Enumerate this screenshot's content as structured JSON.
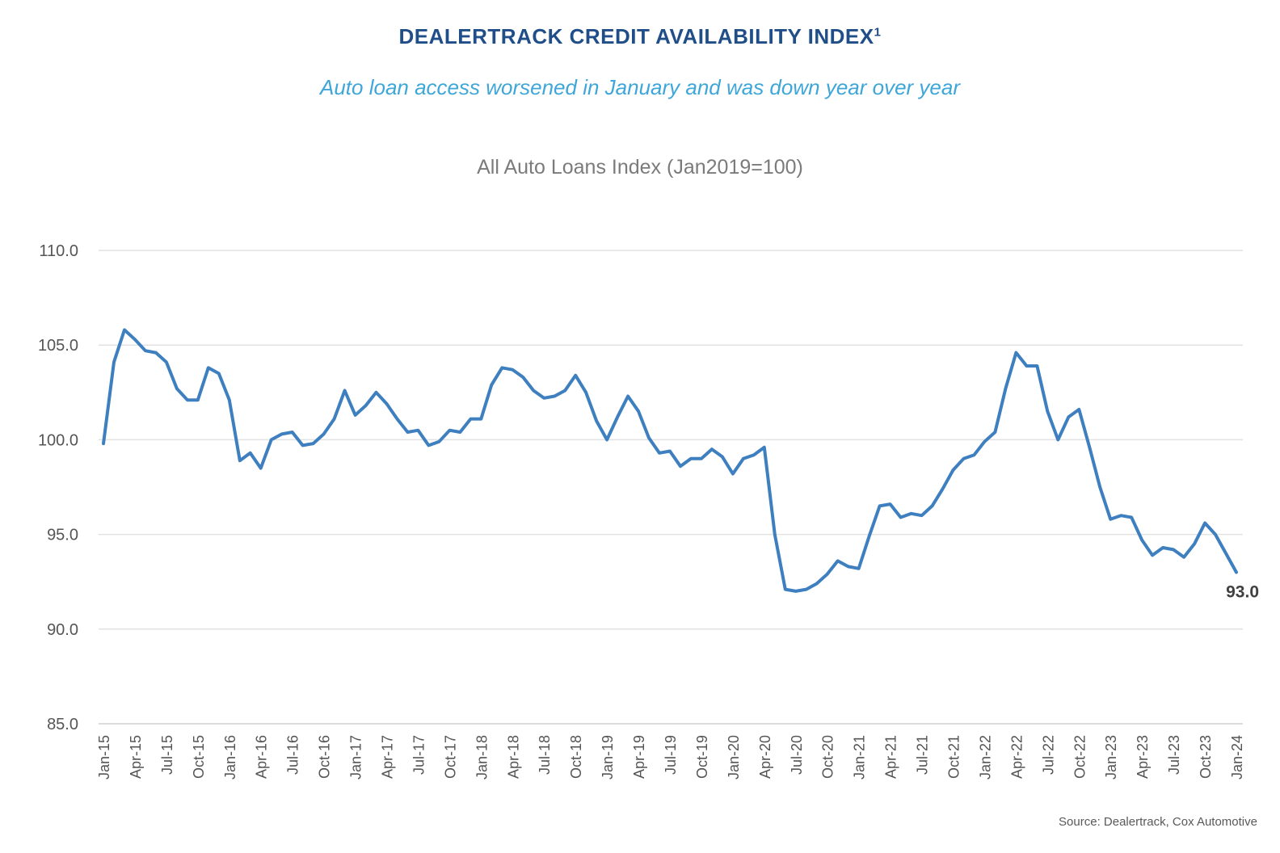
{
  "header": {
    "title": "DEALERTRACK CREDIT AVAILABILITY INDEX",
    "title_sup": "1",
    "subtitle": "Auto loan access worsened in January and was down year over year"
  },
  "source": "Source: Dealertrack, Cox Automotive",
  "colors": {
    "line": "#3e7fbf",
    "grid": "#e2e2e2",
    "title": "#1f4e89",
    "subtitle": "#3ea6d8"
  },
  "chart_data": {
    "type": "line",
    "title": "All Auto Loans Index (Jan2019=100)",
    "xlabel": "",
    "ylabel": "",
    "ylim": [
      85,
      110
    ],
    "yticks": [
      "85.0",
      "90.0",
      "95.0",
      "100.0",
      "105.0",
      "110.0"
    ],
    "grid": true,
    "legend": "none",
    "end_label": "93.0",
    "x_tick_labels": [
      "Jan-15",
      "Apr-15",
      "Jul-15",
      "Oct-15",
      "Jan-16",
      "Apr-16",
      "Jul-16",
      "Oct-16",
      "Jan-17",
      "Apr-17",
      "Jul-17",
      "Oct-17",
      "Jan-18",
      "Apr-18",
      "Jul-18",
      "Oct-18",
      "Jan-19",
      "Apr-19",
      "Jul-19",
      "Oct-19",
      "Jan-20",
      "Apr-20",
      "Jul-20",
      "Oct-20",
      "Jan-21",
      "Apr-21",
      "Jul-21",
      "Oct-21",
      "Jan-22",
      "Apr-22",
      "Jul-22",
      "Oct-22",
      "Jan-23",
      "Apr-23",
      "Jul-23",
      "Oct-23",
      "Jan-24"
    ],
    "x": [
      "Jan-15",
      "Feb-15",
      "Mar-15",
      "Apr-15",
      "May-15",
      "Jun-15",
      "Jul-15",
      "Aug-15",
      "Sep-15",
      "Oct-15",
      "Nov-15",
      "Dec-15",
      "Jan-16",
      "Feb-16",
      "Mar-16",
      "Apr-16",
      "May-16",
      "Jun-16",
      "Jul-16",
      "Aug-16",
      "Sep-16",
      "Oct-16",
      "Nov-16",
      "Dec-16",
      "Jan-17",
      "Feb-17",
      "Mar-17",
      "Apr-17",
      "May-17",
      "Jun-17",
      "Jul-17",
      "Aug-17",
      "Sep-17",
      "Oct-17",
      "Nov-17",
      "Dec-17",
      "Jan-18",
      "Feb-18",
      "Mar-18",
      "Apr-18",
      "May-18",
      "Jun-18",
      "Jul-18",
      "Aug-18",
      "Sep-18",
      "Oct-18",
      "Nov-18",
      "Dec-18",
      "Jan-19",
      "Feb-19",
      "Mar-19",
      "Apr-19",
      "May-19",
      "Jun-19",
      "Jul-19",
      "Aug-19",
      "Sep-19",
      "Oct-19",
      "Nov-19",
      "Dec-19",
      "Jan-20",
      "Feb-20",
      "Mar-20",
      "Apr-20",
      "May-20",
      "Jun-20",
      "Jul-20",
      "Aug-20",
      "Sep-20",
      "Oct-20",
      "Nov-20",
      "Dec-20",
      "Jan-21",
      "Feb-21",
      "Mar-21",
      "Apr-21",
      "May-21",
      "Jun-21",
      "Jul-21",
      "Aug-21",
      "Sep-21",
      "Oct-21",
      "Nov-21",
      "Dec-21",
      "Jan-22",
      "Feb-22",
      "Mar-22",
      "Apr-22",
      "May-22",
      "Jun-22",
      "Jul-22",
      "Aug-22",
      "Sep-22",
      "Oct-22",
      "Nov-22",
      "Dec-22",
      "Jan-23",
      "Feb-23",
      "Mar-23",
      "Apr-23",
      "May-23",
      "Jun-23",
      "Jul-23",
      "Aug-23",
      "Sep-23",
      "Oct-23",
      "Nov-23",
      "Dec-23",
      "Jan-24"
    ],
    "series": [
      {
        "values": [
          99.8,
          104.1,
          105.8,
          105.3,
          104.7,
          104.6,
          104.1,
          102.7,
          102.1,
          102.1,
          103.8,
          103.5,
          102.1,
          98.9,
          99.3,
          98.5,
          100.0,
          100.3,
          100.4,
          99.7,
          99.8,
          100.3,
          101.1,
          102.6,
          101.3,
          101.8,
          102.5,
          101.9,
          101.1,
          100.4,
          100.5,
          99.7,
          99.9,
          100.5,
          100.4,
          101.1,
          101.1,
          102.9,
          103.8,
          103.7,
          103.3,
          102.6,
          102.2,
          102.3,
          102.6,
          103.4,
          102.5,
          101.0,
          100.0,
          101.2,
          102.3,
          101.5,
          100.1,
          99.3,
          99.4,
          98.6,
          99.0,
          99.0,
          99.5,
          99.1,
          98.2,
          99.0,
          99.2,
          99.6,
          95.0,
          92.1,
          92.0,
          92.1,
          92.4,
          92.9,
          93.6,
          93.3,
          93.2,
          94.9,
          96.5,
          96.6,
          95.9,
          96.1,
          96.0,
          96.5,
          97.4,
          98.4,
          99.0,
          99.2,
          99.9,
          100.4,
          102.7,
          104.6,
          103.9,
          103.9,
          101.5,
          100.0,
          101.2,
          101.6,
          99.6,
          97.5,
          95.8,
          96.0,
          95.9,
          94.7,
          93.9,
          94.3,
          94.2,
          93.8,
          94.5,
          95.6,
          95.0,
          94.0,
          93.0
        ]
      }
    ]
  }
}
